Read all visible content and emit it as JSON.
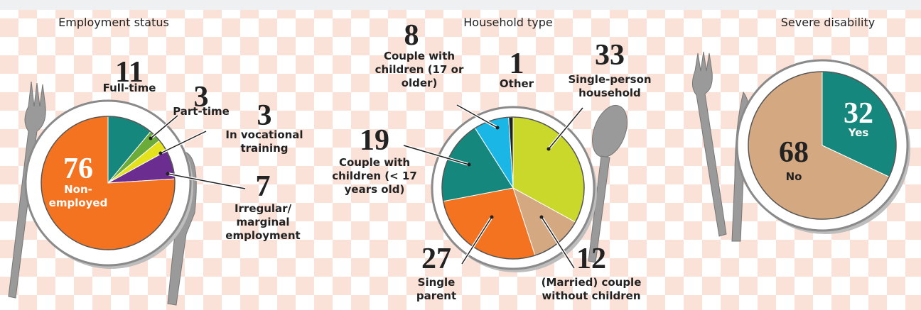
{
  "chart_data": [
    {
      "type": "pie",
      "title": "Employment status",
      "categories": [
        "Full-time",
        "Part-time",
        "In vocational training",
        "Irregular/ marginal employment",
        "Non-employed"
      ],
      "values": [
        11,
        3,
        3,
        7,
        76
      ],
      "colors": [
        "#16877c",
        "#6aab3a",
        "#e3e21c",
        "#6b2d8f",
        "#f47320"
      ]
    },
    {
      "type": "pie",
      "title": "Household type",
      "categories": [
        "Single-person household",
        "(Married) couple without children",
        "Single parent",
        "Couple with children (< 17 years old)",
        "Couple with children (17 or older)",
        "Other"
      ],
      "values": [
        33,
        12,
        27,
        19,
        8,
        1
      ],
      "colors": [
        "#c9d82b",
        "#d4a880",
        "#f47320",
        "#16877c",
        "#1ab7e6",
        "#222222"
      ]
    },
    {
      "type": "pie",
      "title": "Severe disability",
      "categories": [
        "Yes",
        "No"
      ],
      "values": [
        32,
        68
      ],
      "colors": [
        "#16877c",
        "#d4a880"
      ]
    }
  ]
}
